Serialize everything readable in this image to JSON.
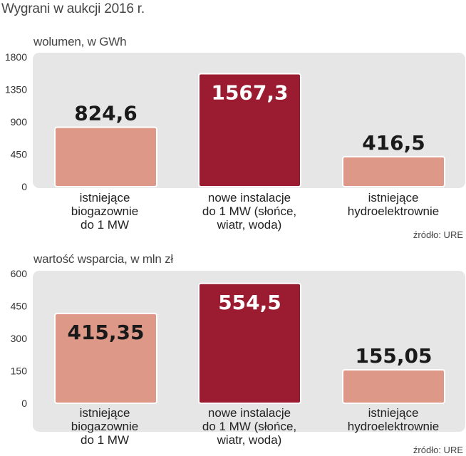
{
  "title": "Wygrani w aukcji 2016 r.",
  "colors": {
    "light_bar": "#dd9888",
    "dark_bar": "#9b1c30",
    "panel": "#e6e6e6"
  },
  "chart_data": [
    {
      "type": "bar",
      "title": "wolumen, w GWh",
      "categories": [
        "istniejące biogazownie do 1 MW",
        "nowe instalacje do 1 MW (słońce, wiatr, woda)",
        "istniejące hydroelektrownie"
      ],
      "category_lines": [
        [
          "istniejące",
          "biogazownie",
          "do 1 MW"
        ],
        [
          "nowe instalacje",
          "do 1 MW (słońce,",
          "wiatr, woda)"
        ],
        [
          "istniejące",
          "hydroelektrownie"
        ]
      ],
      "values": [
        824.6,
        1567.3,
        416.5
      ],
      "value_labels": [
        "824,6",
        "1567,3",
        "416,5"
      ],
      "yticks": [
        0,
        450,
        900,
        1350,
        1800
      ],
      "ytick_labels": [
        "0",
        "450",
        "900",
        "1350",
        "1800"
      ],
      "ylim": [
        0,
        1800
      ],
      "highlight_index": 1,
      "source": "źródło: URE"
    },
    {
      "type": "bar",
      "title": "wartość wsparcia, w mln zł",
      "categories": [
        "istniejące biogazownie do 1 MW",
        "nowe instalacje do 1 MW (słońce, wiatr, woda)",
        "istniejące hydroelektrownie"
      ],
      "category_lines": [
        [
          "istniejące",
          "biogazownie",
          "do 1 MW"
        ],
        [
          "nowe instalacje",
          "do 1 MW (słońce,",
          "wiatr, woda)"
        ],
        [
          "istniejące",
          "hydroelektrownie"
        ]
      ],
      "values": [
        415.35,
        554.5,
        155.05
      ],
      "value_labels": [
        "415,35",
        "554,5",
        "155,05"
      ],
      "yticks": [
        0,
        150,
        300,
        450,
        600
      ],
      "ytick_labels": [
        "0",
        "150",
        "300",
        "450",
        "600"
      ],
      "ylim": [
        0,
        600
      ],
      "highlight_index": 1,
      "source": "źródło: URE"
    }
  ]
}
